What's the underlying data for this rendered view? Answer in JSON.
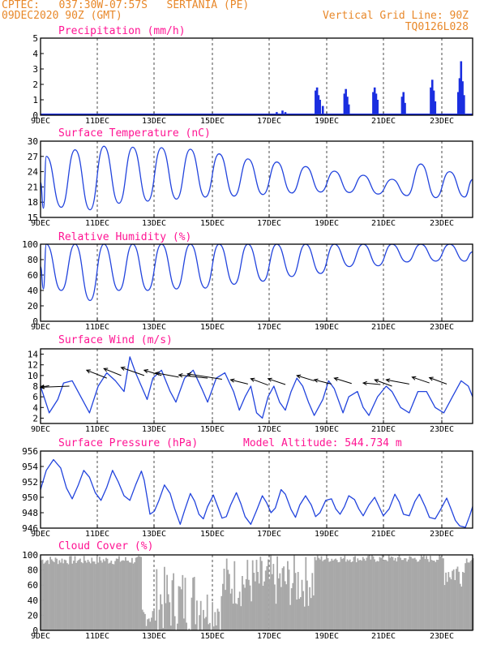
{
  "header": {
    "line1": "CPTEC:   037:30W-07:57S   SERTANIA (PE)",
    "line2": "09DEC2020 90Z (GMT)",
    "grid_note": "Vertical Grid Line: 90Z",
    "code": "TQ0126L028"
  },
  "colors": {
    "title": "#ff1493",
    "header": "#e8882a",
    "line": "#2244dd",
    "bar": "#1a2ee0",
    "cloud": "#a8a8a8",
    "arrow": "#000000"
  },
  "chart_data": [
    {
      "type": "bar",
      "title": "Precipitation (mm/h)",
      "x_range": [
        0,
        15
      ],
      "ylim": [
        0,
        5
      ],
      "yticks": [
        0,
        1,
        2,
        3,
        4,
        5
      ],
      "xticks": [
        "9DEC",
        "11DEC",
        "13DEC",
        "15DEC",
        "17DEC",
        "19DEC",
        "21DEC",
        "23DEC"
      ],
      "spikes": [
        {
          "x": 7.9,
          "y": 0.1
        },
        {
          "x": 8.2,
          "y": 0.2
        },
        {
          "x": 8.4,
          "y": 0.3
        },
        {
          "x": 8.5,
          "y": 0.2
        },
        {
          "x": 9.55,
          "y": 1.6
        },
        {
          "x": 9.6,
          "y": 1.8
        },
        {
          "x": 9.65,
          "y": 1.3
        },
        {
          "x": 9.7,
          "y": 1.0
        },
        {
          "x": 9.8,
          "y": 0.6
        },
        {
          "x": 10.55,
          "y": 1.4
        },
        {
          "x": 10.6,
          "y": 1.7
        },
        {
          "x": 10.65,
          "y": 1.2
        },
        {
          "x": 10.7,
          "y": 0.7
        },
        {
          "x": 11.55,
          "y": 1.5
        },
        {
          "x": 11.6,
          "y": 1.8
        },
        {
          "x": 11.65,
          "y": 1.4
        },
        {
          "x": 11.7,
          "y": 1.0
        },
        {
          "x": 12.55,
          "y": 1.2
        },
        {
          "x": 12.6,
          "y": 1.5
        },
        {
          "x": 12.65,
          "y": 0.8
        },
        {
          "x": 13.55,
          "y": 1.8
        },
        {
          "x": 13.6,
          "y": 2.3
        },
        {
          "x": 13.65,
          "y": 1.6
        },
        {
          "x": 13.7,
          "y": 0.9
        },
        {
          "x": 14.5,
          "y": 1.5
        },
        {
          "x": 14.55,
          "y": 2.4
        },
        {
          "x": 14.6,
          "y": 3.5
        },
        {
          "x": 14.65,
          "y": 2.2
        },
        {
          "x": 14.7,
          "y": 1.3
        }
      ]
    },
    {
      "type": "line",
      "title": "Surface Temperature (nC)",
      "x_range": [
        0,
        15
      ],
      "ylim": [
        15,
        30
      ],
      "yticks": [
        15,
        18,
        21,
        24,
        27,
        30
      ],
      "xticks": [
        "9DEC",
        "11DEC",
        "13DEC",
        "15DEC",
        "17DEC",
        "19DEC",
        "21DEC",
        "23DEC"
      ],
      "daily_min": [
        16.8,
        17.0,
        16.5,
        17.8,
        18.2,
        18.6,
        19.0,
        19.2,
        19.5,
        19.8,
        20.0,
        19.9,
        19.6,
        19.3,
        18.9,
        19.0
      ],
      "daily_max": [
        27.0,
        28.3,
        29.0,
        28.8,
        28.7,
        28.4,
        27.5,
        26.5,
        25.9,
        25.0,
        24.1,
        23.3,
        22.5,
        25.5,
        24.0
      ]
    },
    {
      "type": "line",
      "title": "Relative Humidity (%)",
      "x_range": [
        0,
        15
      ],
      "ylim": [
        0,
        100
      ],
      "yticks": [
        0,
        20,
        40,
        60,
        80,
        100
      ],
      "xticks": [
        "9DEC",
        "11DEC",
        "13DEC",
        "15DEC",
        "17DEC",
        "19DEC",
        "21DEC",
        "23DEC"
      ],
      "daily_max": [
        100,
        100,
        100,
        100,
        100,
        100,
        100,
        100,
        100,
        100,
        100,
        100,
        100,
        100,
        100
      ],
      "daily_min": [
        42,
        40,
        27,
        40,
        40,
        42,
        43,
        48,
        52,
        58,
        62,
        71,
        72,
        77,
        78
      ]
    },
    {
      "type": "line",
      "title": "Surface Wind (m/s)",
      "x_range": [
        0,
        15
      ],
      "ylim": [
        1,
        15
      ],
      "yticks": [
        2,
        4,
        6,
        8,
        10,
        12,
        14
      ],
      "xticks": [
        "9DEC",
        "11DEC",
        "13DEC",
        "15DEC",
        "17DEC",
        "19DEC",
        "21DEC",
        "23DEC"
      ],
      "points": [
        [
          0.0,
          8.0
        ],
        [
          0.3,
          3.0
        ],
        [
          0.6,
          5.5
        ],
        [
          0.8,
          8.6
        ],
        [
          1.1,
          9.0
        ],
        [
          1.4,
          6.0
        ],
        [
          1.7,
          3.0
        ],
        [
          2.0,
          8.0
        ],
        [
          2.3,
          10.5
        ],
        [
          2.6,
          9.0
        ],
        [
          2.9,
          7.0
        ],
        [
          3.1,
          13.5
        ],
        [
          3.3,
          10.5
        ],
        [
          3.5,
          8.0
        ],
        [
          3.7,
          5.5
        ],
        [
          3.9,
          9.5
        ],
        [
          4.2,
          11.0
        ],
        [
          4.5,
          7.0
        ],
        [
          4.7,
          5.0
        ],
        [
          5.0,
          9.5
        ],
        [
          5.3,
          11.0
        ],
        [
          5.6,
          7.5
        ],
        [
          5.8,
          5.0
        ],
        [
          6.1,
          9.5
        ],
        [
          6.4,
          10.5
        ],
        [
          6.7,
          7.0
        ],
        [
          6.9,
          3.5
        ],
        [
          7.1,
          6.0
        ],
        [
          7.3,
          8.0
        ],
        [
          7.5,
          3.0
        ],
        [
          7.7,
          2.0
        ],
        [
          7.9,
          6.0
        ],
        [
          8.1,
          8.0
        ],
        [
          8.3,
          5.0
        ],
        [
          8.5,
          3.5
        ],
        [
          8.7,
          7.0
        ],
        [
          8.9,
          9.5
        ],
        [
          9.1,
          8.0
        ],
        [
          9.3,
          5.0
        ],
        [
          9.5,
          2.5
        ],
        [
          9.8,
          5.5
        ],
        [
          10.0,
          9.0
        ],
        [
          10.2,
          7.5
        ],
        [
          10.5,
          3.0
        ],
        [
          10.7,
          6.0
        ],
        [
          11.0,
          7.0
        ],
        [
          11.2,
          4.0
        ],
        [
          11.4,
          2.5
        ],
        [
          11.7,
          6.0
        ],
        [
          12.0,
          8.0
        ],
        [
          12.2,
          7.0
        ],
        [
          12.5,
          4.0
        ],
        [
          12.8,
          3.0
        ],
        [
          13.1,
          7.0
        ],
        [
          13.4,
          7.0
        ],
        [
          13.7,
          4.0
        ],
        [
          14.0,
          3.0
        ],
        [
          14.3,
          6.0
        ],
        [
          14.6,
          9.0
        ],
        [
          14.85,
          8.0
        ],
        [
          15.0,
          6.0
        ]
      ],
      "arrows": [
        {
          "x": 0.3,
          "y": 8.1,
          "dx": -0.3,
          "dy": -0.3
        },
        {
          "x": 1.0,
          "y": 8.0,
          "dx": -1.0,
          "dy": -0.2
        },
        {
          "x": 2.3,
          "y": 9.5,
          "dx": -0.7,
          "dy": 1.5
        },
        {
          "x": 2.8,
          "y": 10.0,
          "dx": -0.6,
          "dy": 1.3
        },
        {
          "x": 3.6,
          "y": 10.0,
          "dx": -0.8,
          "dy": 1.5
        },
        {
          "x": 4.2,
          "y": 10.0,
          "dx": -0.6,
          "dy": 1.0
        },
        {
          "x": 4.8,
          "y": 9.7,
          "dx": -0.8,
          "dy": 0.8
        },
        {
          "x": 5.8,
          "y": 9.5,
          "dx": -1.0,
          "dy": 0.6
        },
        {
          "x": 6.3,
          "y": 9.3,
          "dx": -1.2,
          "dy": 1.0
        },
        {
          "x": 7.2,
          "y": 8.4,
          "dx": -0.6,
          "dy": 0.8
        },
        {
          "x": 7.9,
          "y": 8.2,
          "dx": -0.6,
          "dy": 1.2
        },
        {
          "x": 8.5,
          "y": 8.3,
          "dx": -0.6,
          "dy": 1.1
        },
        {
          "x": 9.5,
          "y": 9.0,
          "dx": -0.6,
          "dy": 1.0
        },
        {
          "x": 10.1,
          "y": 8.4,
          "dx": -0.6,
          "dy": 0.8
        },
        {
          "x": 10.8,
          "y": 8.5,
          "dx": -0.6,
          "dy": 1.0
        },
        {
          "x": 11.8,
          "y": 8.3,
          "dx": -0.6,
          "dy": 0.3
        },
        {
          "x": 12.2,
          "y": 8.0,
          "dx": -0.6,
          "dy": 1.2
        },
        {
          "x": 12.8,
          "y": 8.4,
          "dx": -0.8,
          "dy": 0.8
        },
        {
          "x": 13.5,
          "y": 8.6,
          "dx": -0.6,
          "dy": 1.1
        },
        {
          "x": 14.1,
          "y": 8.4,
          "dx": -0.6,
          "dy": 1.2
        }
      ]
    },
    {
      "type": "line",
      "title": "Surface Pressure (hPa)",
      "subtitle": "Model Altitude: 544.734  m",
      "x_range": [
        0,
        15
      ],
      "ylim": [
        946,
        956
      ],
      "yticks": [
        946,
        948,
        950,
        952,
        954,
        956
      ],
      "xticks": [
        "9DEC",
        "11DEC",
        "13DEC",
        "15DEC",
        "17DEC",
        "19DEC",
        "21DEC",
        "23DEC"
      ],
      "points": [
        [
          0.0,
          951.0
        ],
        [
          0.2,
          953.5
        ],
        [
          0.45,
          954.9
        ],
        [
          0.7,
          953.8
        ],
        [
          0.9,
          951.2
        ],
        [
          1.1,
          949.8
        ],
        [
          1.3,
          951.5
        ],
        [
          1.5,
          953.5
        ],
        [
          1.7,
          952.6
        ],
        [
          1.9,
          950.6
        ],
        [
          2.1,
          949.6
        ],
        [
          2.3,
          951.3
        ],
        [
          2.5,
          953.5
        ],
        [
          2.7,
          952.0
        ],
        [
          2.9,
          950.2
        ],
        [
          3.1,
          949.6
        ],
        [
          3.3,
          951.6
        ],
        [
          3.5,
          953.4
        ],
        [
          3.6,
          952.2
        ],
        [
          3.8,
          947.8
        ],
        [
          3.95,
          948.2
        ],
        [
          4.1,
          949.5
        ],
        [
          4.3,
          951.6
        ],
        [
          4.5,
          950.5
        ],
        [
          4.65,
          948.6
        ],
        [
          4.85,
          946.5
        ],
        [
          5.0,
          948.3
        ],
        [
          5.2,
          950.5
        ],
        [
          5.35,
          949.5
        ],
        [
          5.5,
          947.8
        ],
        [
          5.65,
          947.2
        ],
        [
          5.8,
          948.8
        ],
        [
          6.0,
          950.3
        ],
        [
          6.15,
          948.8
        ],
        [
          6.3,
          947.3
        ],
        [
          6.45,
          947.5
        ],
        [
          6.6,
          949.0
        ],
        [
          6.8,
          950.6
        ],
        [
          6.95,
          949.2
        ],
        [
          7.1,
          947.5
        ],
        [
          7.3,
          946.5
        ],
        [
          7.5,
          948.3
        ],
        [
          7.7,
          950.2
        ],
        [
          7.85,
          949.3
        ],
        [
          8.0,
          948.0
        ],
        [
          8.15,
          948.6
        ],
        [
          8.35,
          951.0
        ],
        [
          8.5,
          950.4
        ],
        [
          8.7,
          948.4
        ],
        [
          8.85,
          947.4
        ],
        [
          9.0,
          949.0
        ],
        [
          9.2,
          950.2
        ],
        [
          9.4,
          949.0
        ],
        [
          9.55,
          947.5
        ],
        [
          9.7,
          948.0
        ],
        [
          9.9,
          949.6
        ],
        [
          10.1,
          949.8
        ],
        [
          10.25,
          948.5
        ],
        [
          10.4,
          947.8
        ],
        [
          10.55,
          948.8
        ],
        [
          10.7,
          950.2
        ],
        [
          10.9,
          949.7
        ],
        [
          11.05,
          948.5
        ],
        [
          11.2,
          947.6
        ],
        [
          11.4,
          949.0
        ],
        [
          11.6,
          950.0
        ],
        [
          11.75,
          948.8
        ],
        [
          11.9,
          947.6
        ],
        [
          12.1,
          948.5
        ],
        [
          12.3,
          950.4
        ],
        [
          12.45,
          949.4
        ],
        [
          12.6,
          947.8
        ],
        [
          12.8,
          947.6
        ],
        [
          13.0,
          949.5
        ],
        [
          13.15,
          950.4
        ],
        [
          13.35,
          948.8
        ],
        [
          13.5,
          947.4
        ],
        [
          13.7,
          947.2
        ],
        [
          13.9,
          948.5
        ],
        [
          14.1,
          949.9
        ],
        [
          14.25,
          948.5
        ],
        [
          14.4,
          947.0
        ],
        [
          14.55,
          946.3
        ],
        [
          14.75,
          946.1
        ],
        [
          14.9,
          947.6
        ],
        [
          15.0,
          948.8
        ]
      ]
    },
    {
      "type": "bar",
      "title": "Cloud Cover (%)",
      "x_range": [
        0,
        15
      ],
      "ylim": [
        0,
        100
      ],
      "yticks": [
        0,
        20,
        40,
        60,
        80,
        100
      ],
      "xticks": [
        "9DEC",
        "11DEC",
        "13DEC",
        "15DEC",
        "17DEC",
        "19DEC",
        "21DEC",
        "23DEC"
      ],
      "segments": [
        {
          "x0": 0.0,
          "x1": 3.5,
          "base": 93,
          "amp": 6
        },
        {
          "x0": 3.5,
          "x1": 4.0,
          "base": 20,
          "amp": 15
        },
        {
          "x0": 4.0,
          "x1": 5.7,
          "base": 40,
          "amp": 45
        },
        {
          "x0": 5.7,
          "x1": 6.3,
          "base": 30,
          "amp": 30
        },
        {
          "x0": 6.3,
          "x1": 9.5,
          "base": 65,
          "amp": 35
        },
        {
          "x0": 9.5,
          "x1": 14.0,
          "base": 95,
          "amp": 5
        },
        {
          "x0": 14.0,
          "x1": 14.7,
          "base": 78,
          "amp": 20
        },
        {
          "x0": 14.7,
          "x1": 15.0,
          "base": 94,
          "amp": 5
        }
      ]
    }
  ]
}
